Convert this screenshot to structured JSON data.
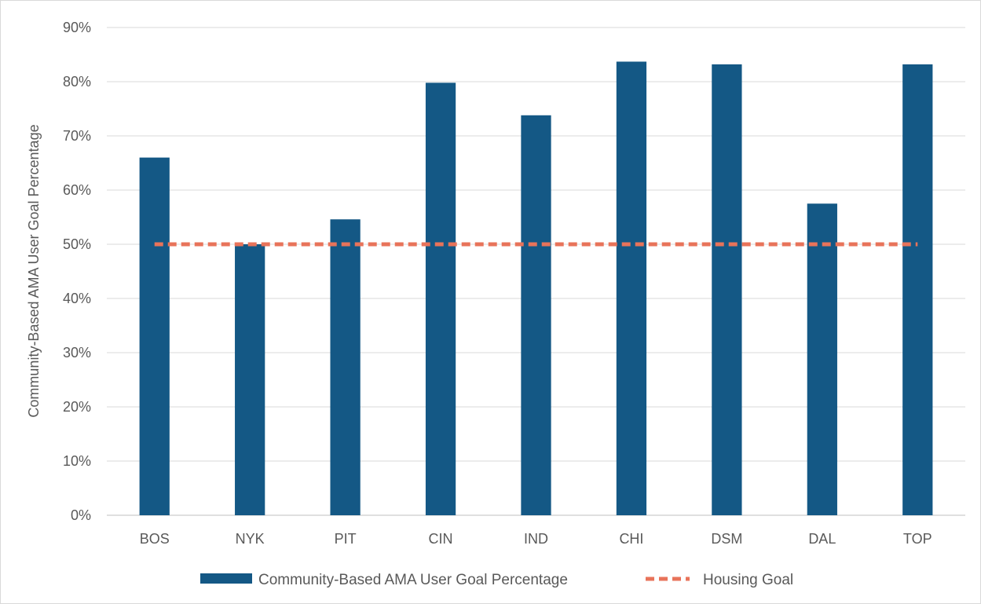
{
  "chart_data": {
    "type": "bar",
    "title": "",
    "xlabel": "",
    "ylabel": "Community-Based AMA User Goal Percentage",
    "categories": [
      "BOS",
      "NYK",
      "PIT",
      "CIN",
      "IND",
      "CHI",
      "DSM",
      "DAL",
      "TOP"
    ],
    "series": [
      {
        "name": "Community-Based AMA User Goal Percentage",
        "kind": "bar",
        "color": "#145885",
        "values": [
          66,
          50,
          54.6,
          79.8,
          73.8,
          83.7,
          83.2,
          57.5,
          83.2
        ]
      },
      {
        "name": "Housing Goal",
        "kind": "line",
        "style": "dashed",
        "color": "#E8735A",
        "values": [
          50,
          50,
          50,
          50,
          50,
          50,
          50,
          50,
          50
        ]
      }
    ],
    "ylim": [
      0,
      90
    ],
    "yticks": [
      0,
      10,
      20,
      30,
      40,
      50,
      60,
      70,
      80,
      90
    ],
    "ytick_labels": [
      "0%",
      "10%",
      "20%",
      "30%",
      "40%",
      "50%",
      "60%",
      "70%",
      "80%",
      "90%"
    ],
    "grid": true,
    "legend_position": "bottom"
  }
}
